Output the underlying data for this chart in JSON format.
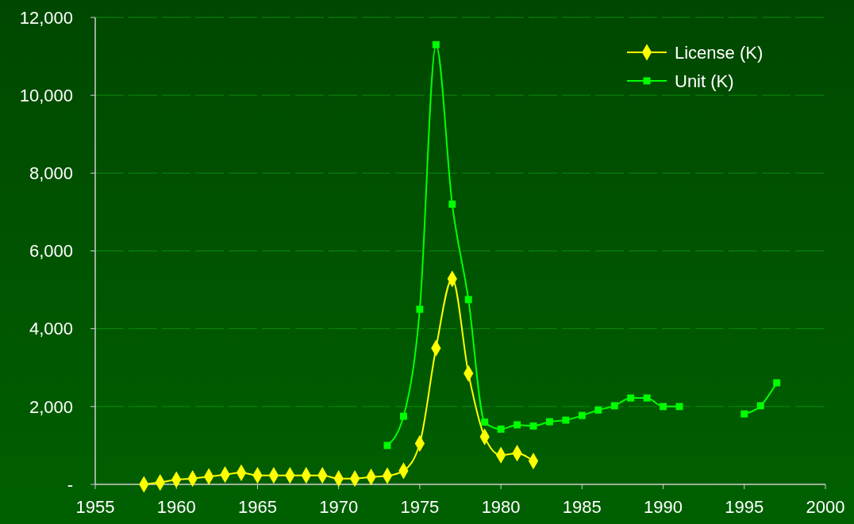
{
  "chart_data": {
    "type": "line",
    "x": [
      1958,
      1959,
      1960,
      1961,
      1962,
      1963,
      1964,
      1965,
      1966,
      1967,
      1968,
      1969,
      1970,
      1971,
      1972,
      1973,
      1974,
      1975,
      1976,
      1977,
      1978,
      1979,
      1980,
      1981,
      1982,
      1983,
      1984,
      1985,
      1986,
      1987,
      1988,
      1989,
      1990,
      1991,
      1992,
      1993,
      1994,
      1995,
      1996,
      1997
    ],
    "series": [
      {
        "name": "License (K)",
        "color": "#ffff00",
        "marker": "diamond",
        "values": [
          0,
          50,
          120,
          150,
          200,
          250,
          300,
          230,
          230,
          230,
          230,
          230,
          150,
          150,
          190,
          220,
          350,
          1050,
          3500,
          5280,
          2850,
          1220,
          750,
          800,
          600,
          null,
          null,
          null,
          null,
          null,
          null,
          null,
          null,
          null,
          null,
          null,
          null,
          null,
          null,
          null
        ]
      },
      {
        "name": "Unit (K)",
        "color": "#00ff00",
        "marker": "square",
        "values": [
          null,
          null,
          null,
          null,
          null,
          null,
          null,
          null,
          null,
          null,
          null,
          null,
          null,
          null,
          null,
          1000,
          1750,
          4500,
          11300,
          7200,
          4750,
          1600,
          1420,
          1530,
          1500,
          1610,
          1650,
          1770,
          1910,
          2020,
          2220,
          2220,
          2000,
          2000,
          null,
          null,
          null,
          1810,
          2020,
          2610
        ]
      }
    ],
    "xlim": [
      1955,
      2000
    ],
    "xticks": [
      1955,
      1960,
      1965,
      1970,
      1975,
      1980,
      1985,
      1990,
      1995,
      2000
    ],
    "ylim": [
      0,
      12000
    ],
    "yticks": [
      {
        "value": 0,
        "label": "-"
      },
      {
        "value": 2000,
        "label": "2,000"
      },
      {
        "value": 4000,
        "label": "4,000"
      },
      {
        "value": 6000,
        "label": "6,000"
      },
      {
        "value": 8000,
        "label": "8,000"
      },
      {
        "value": 10000,
        "label": "10,000"
      },
      {
        "value": 12000,
        "label": "12,000"
      }
    ],
    "grid": "y",
    "legend": "top right"
  }
}
